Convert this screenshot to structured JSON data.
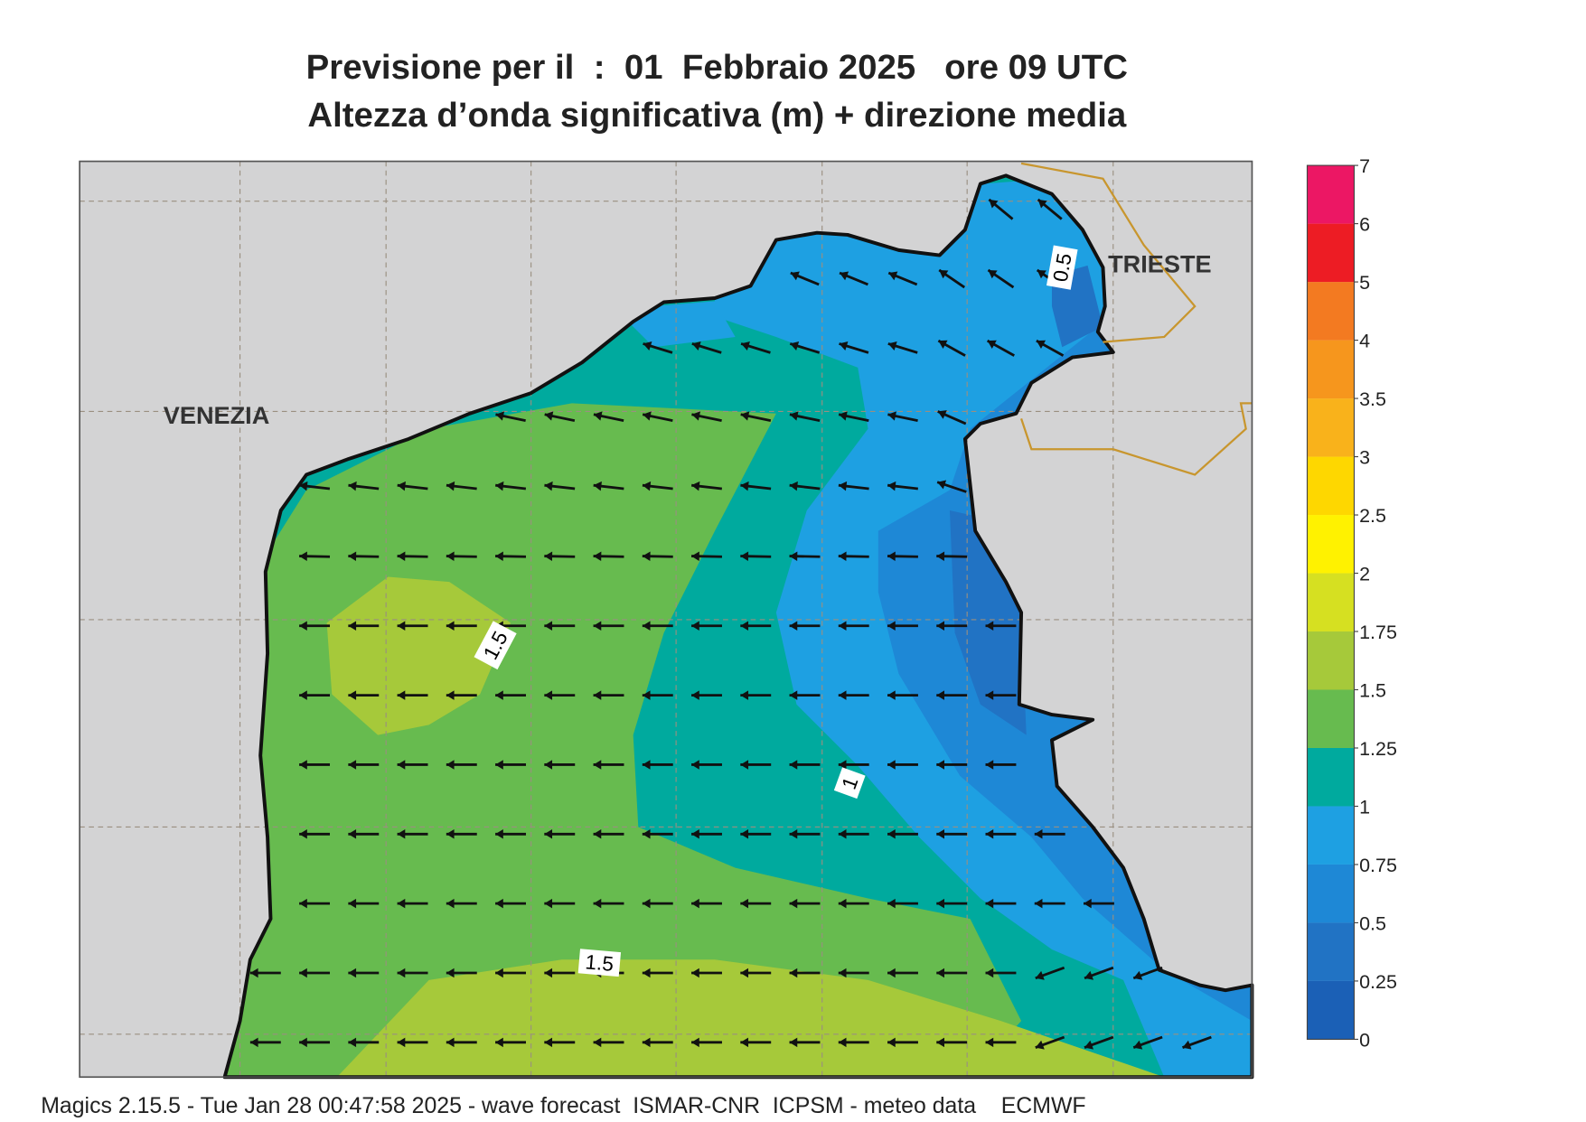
{
  "title": [
    "Previsione per il  :  01  Febbraio 2025   ore 09 UTC",
    "Altezza d’onda significativa (m) + direzione media"
  ],
  "places": [
    "VENEZIA",
    "TRIESTE"
  ],
  "contour_labels": [
    "1.5",
    "1",
    "0.5",
    "1.5"
  ],
  "colorbar": {
    "ticks": [
      0,
      0.25,
      0.5,
      0.75,
      1,
      1.25,
      1.5,
      1.75,
      2,
      2.5,
      3,
      3.5,
      4,
      5,
      6,
      7
    ],
    "colors": [
      "#1b60b6",
      "#2173c4",
      "#1e88d6",
      "#1ea0e2",
      "#00aa9e",
      "#67bb4f",
      "#a6c93a",
      "#d6e021",
      "#fff200",
      "#fed700",
      "#f9b21b",
      "#f6961d",
      "#f37a21",
      "#ed1c24",
      "#ec1764"
    ]
  },
  "footer": "Magics 2.15.5 - Tue Jan 28 00:47:58 2025 - wave forecast  ISMAR-CNR  ICPSM - meteo data    ECMWF"
}
